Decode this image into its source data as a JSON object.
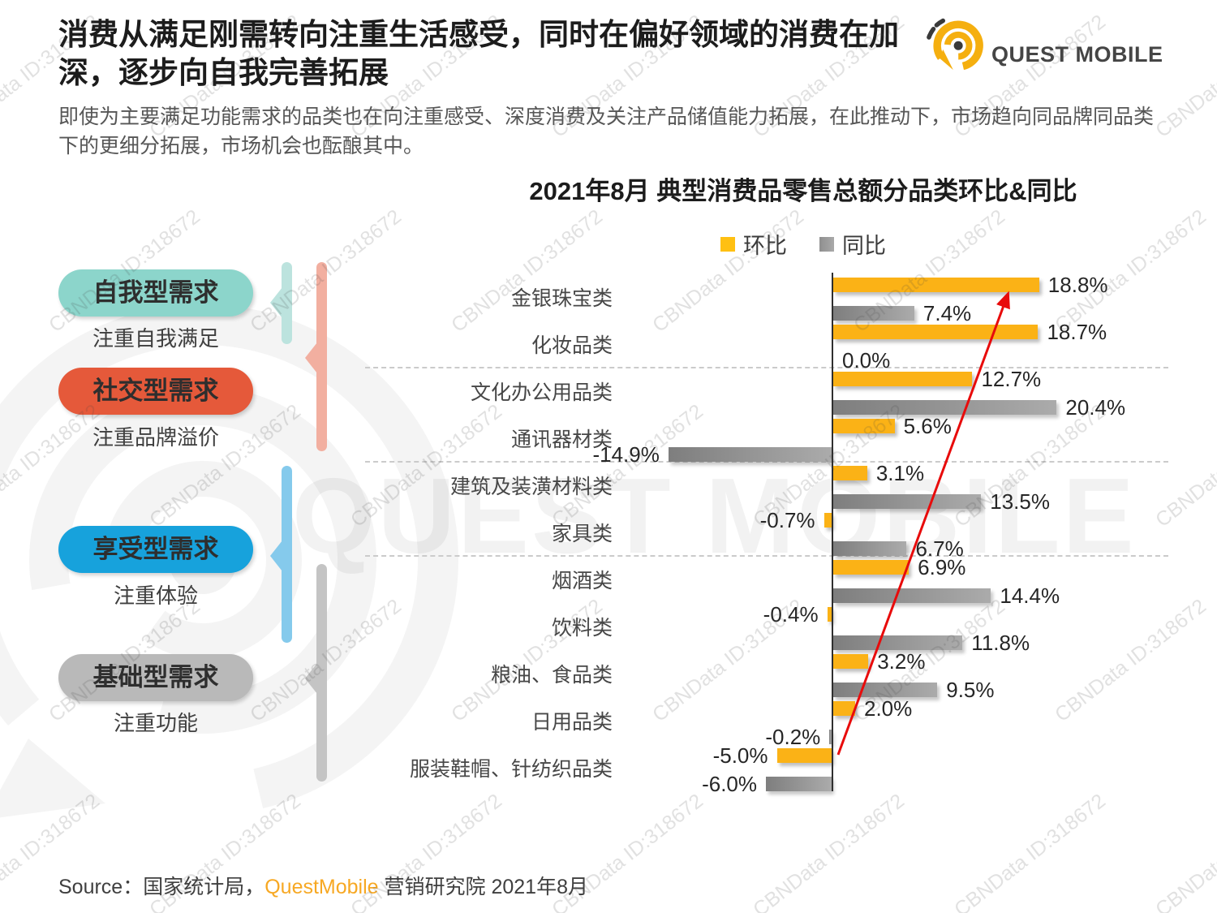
{
  "page": {
    "title": "消费从满足刚需转向注重生活感受，同时在偏好领域的消费在加深，逐步向自我完善拓展",
    "intro": "即使为主要满足功能需求的品类也在向注重感受、深度消费及关注产品储值能力拓展，在此推动下，市场趋向同品牌同品类下的更细分拓展，市场机会也酝酿其中。",
    "source_prefix": "Source：国家统计局，",
    "source_brand": "QuestMobile",
    "source_suffix": " 营销研究院 2021年8月",
    "watermark_tile": "CBNData ID:318672",
    "watermark_big": "QUEST MOBILE"
  },
  "logo": {
    "text": "QUEST MOBILE",
    "icon_color": "#F5AF0F",
    "dark_color": "#3a3a3a"
  },
  "demand_groups": [
    {
      "label": "自我型需求",
      "sublabel": "注重自我满足",
      "pill_color": "#8CD5CB",
      "bracket_color": "#BCE3DE"
    },
    {
      "label": "社交型需求",
      "sublabel": "注重品牌溢价",
      "pill_color": "#E5593A",
      "bracket_color": "#F2AFA0"
    },
    {
      "label": "享受型需求",
      "sublabel": "注重体验",
      "pill_color": "#17A2DC",
      "bracket_color": "#85CAEC"
    },
    {
      "label": "基础型需求",
      "sublabel": "注重功能",
      "pill_color": "#B9B9B9",
      "bracket_color": "#C4C4C4"
    }
  ],
  "chart_data": {
    "type": "bar",
    "orientation": "horizontal",
    "title": "2021年8月 典型消费品零售总额分品类环比&同比",
    "unit": "%",
    "categories": [
      "金银珠宝类",
      "化妆品类",
      "文化办公用品类",
      "通讯器材类",
      "建筑及装潢材料类",
      "家具类",
      "烟酒类",
      "饮料类",
      "粮油、食品类",
      "日用品类",
      "服装鞋帽、针纺织品类"
    ],
    "series": [
      {
        "name": "环比",
        "color": "#FBB216",
        "color2": "#F7A90E",
        "values": [
          18.8,
          18.7,
          12.7,
          5.6,
          3.1,
          -0.7,
          6.9,
          -0.4,
          3.2,
          2.0,
          -5.0
        ]
      },
      {
        "name": "同比",
        "color": "#7E7E7E",
        "color2": "#ABABAB",
        "values": [
          7.4,
          0.0,
          20.4,
          -14.9,
          13.5,
          6.7,
          14.4,
          11.8,
          9.5,
          -0.2,
          -6.0
        ]
      }
    ],
    "legend": [
      {
        "name": "环比",
        "color": "#FFC012"
      },
      {
        "name": "同比",
        "color": "#8F8F8F"
      }
    ],
    "legend_position": "top-center",
    "grid": false,
    "xlim": [
      -16,
      22
    ],
    "separators_after_category_index": [
      1,
      3,
      5
    ],
    "annotations": [
      {
        "type": "trend-arrow",
        "color": "#E80B0B",
        "from_category": "服装鞋帽、针纺织品类",
        "to_category": "金银珠宝类"
      }
    ]
  }
}
